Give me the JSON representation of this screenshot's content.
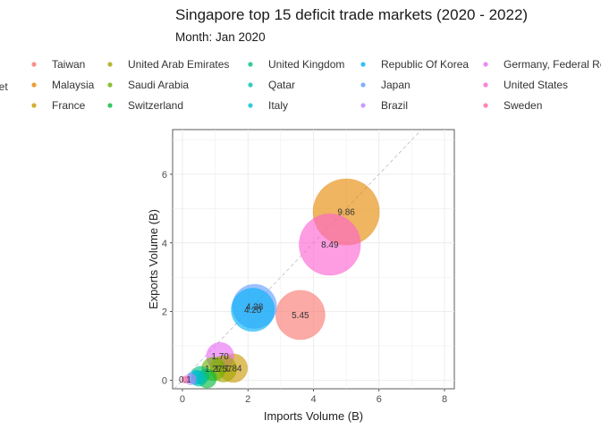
{
  "chart_data": {
    "type": "scatter",
    "title": "Singapore top 15 deficit trade markets (2020 - 2022)",
    "subtitle": "Month: Jan 2020",
    "xlabel": "Imports Volume (B)",
    "ylabel": "Exports Volume (B)",
    "xlim": [
      -0.3,
      8.3
    ],
    "ylim": [
      -0.25,
      7.3
    ],
    "xticks": [
      0,
      2,
      4,
      6,
      8
    ],
    "yticks": [
      0,
      2,
      4,
      6
    ],
    "grid": true,
    "reference_line": "y = x (dashed)",
    "legend_title": "Market",
    "legend_position": "top",
    "legend_columns": 5,
    "series": [
      {
        "name": "Taiwan",
        "color": "#F8766D",
        "x": 3.6,
        "y": 1.9,
        "size": 5.45,
        "label": "5.45"
      },
      {
        "name": "Malaysia",
        "color": "#E58700",
        "x": 5.0,
        "y": 4.9,
        "size": 9.86,
        "label": "9.86"
      },
      {
        "name": "France",
        "color": "#C99800",
        "x": 1.55,
        "y": 0.35,
        "size": 1.84,
        "label": "1.84"
      },
      {
        "name": "United Arab Emirates",
        "color": "#A3A500",
        "x": 1.25,
        "y": 0.33,
        "size": 1.57,
        "label": "1.57"
      },
      {
        "name": "Saudi Arabia",
        "color": "#6BB100",
        "x": 0.95,
        "y": 0.33,
        "size": 1.27,
        "label": "1.27"
      },
      {
        "name": "Switzerland",
        "color": "#00BA38",
        "x": 0.75,
        "y": 0.05,
        "size": 0.81,
        "label": ""
      },
      {
        "name": "United Kingdom",
        "color": "#00BF7D",
        "x": 0.55,
        "y": 0.15,
        "size": 0.7,
        "label": ""
      },
      {
        "name": "Qatar",
        "color": "#00C0AF",
        "x": 0.5,
        "y": 0.05,
        "size": 0.55,
        "label": ""
      },
      {
        "name": "Italy",
        "color": "#00BCD8",
        "x": 0.4,
        "y": 0.08,
        "size": 0.48,
        "label": ""
      },
      {
        "name": "Republic Of Korea",
        "color": "#00B0F6",
        "x": 2.15,
        "y": 2.05,
        "size": 4.2,
        "label": "4.20"
      },
      {
        "name": "Japan",
        "color": "#619CFF",
        "x": 2.2,
        "y": 2.15,
        "size": 4.38,
        "label": "4.38"
      },
      {
        "name": "Brazil",
        "color": "#B983FF",
        "x": 0.25,
        "y": 0.03,
        "size": 0.28,
        "label": ""
      },
      {
        "name": "Germany, Federal Republic Of",
        "color": "#E76BF3",
        "x": 1.15,
        "y": 0.7,
        "size": 1.7,
        "label": "1.70"
      },
      {
        "name": "United States",
        "color": "#FD61D1",
        "x": 4.5,
        "y": 3.95,
        "size": 8.49,
        "label": "8.49"
      },
      {
        "name": "Sweden",
        "color": "#FF67A4",
        "x": 0.08,
        "y": 0.02,
        "size": 0.1,
        "label": "0.1"
      }
    ]
  }
}
